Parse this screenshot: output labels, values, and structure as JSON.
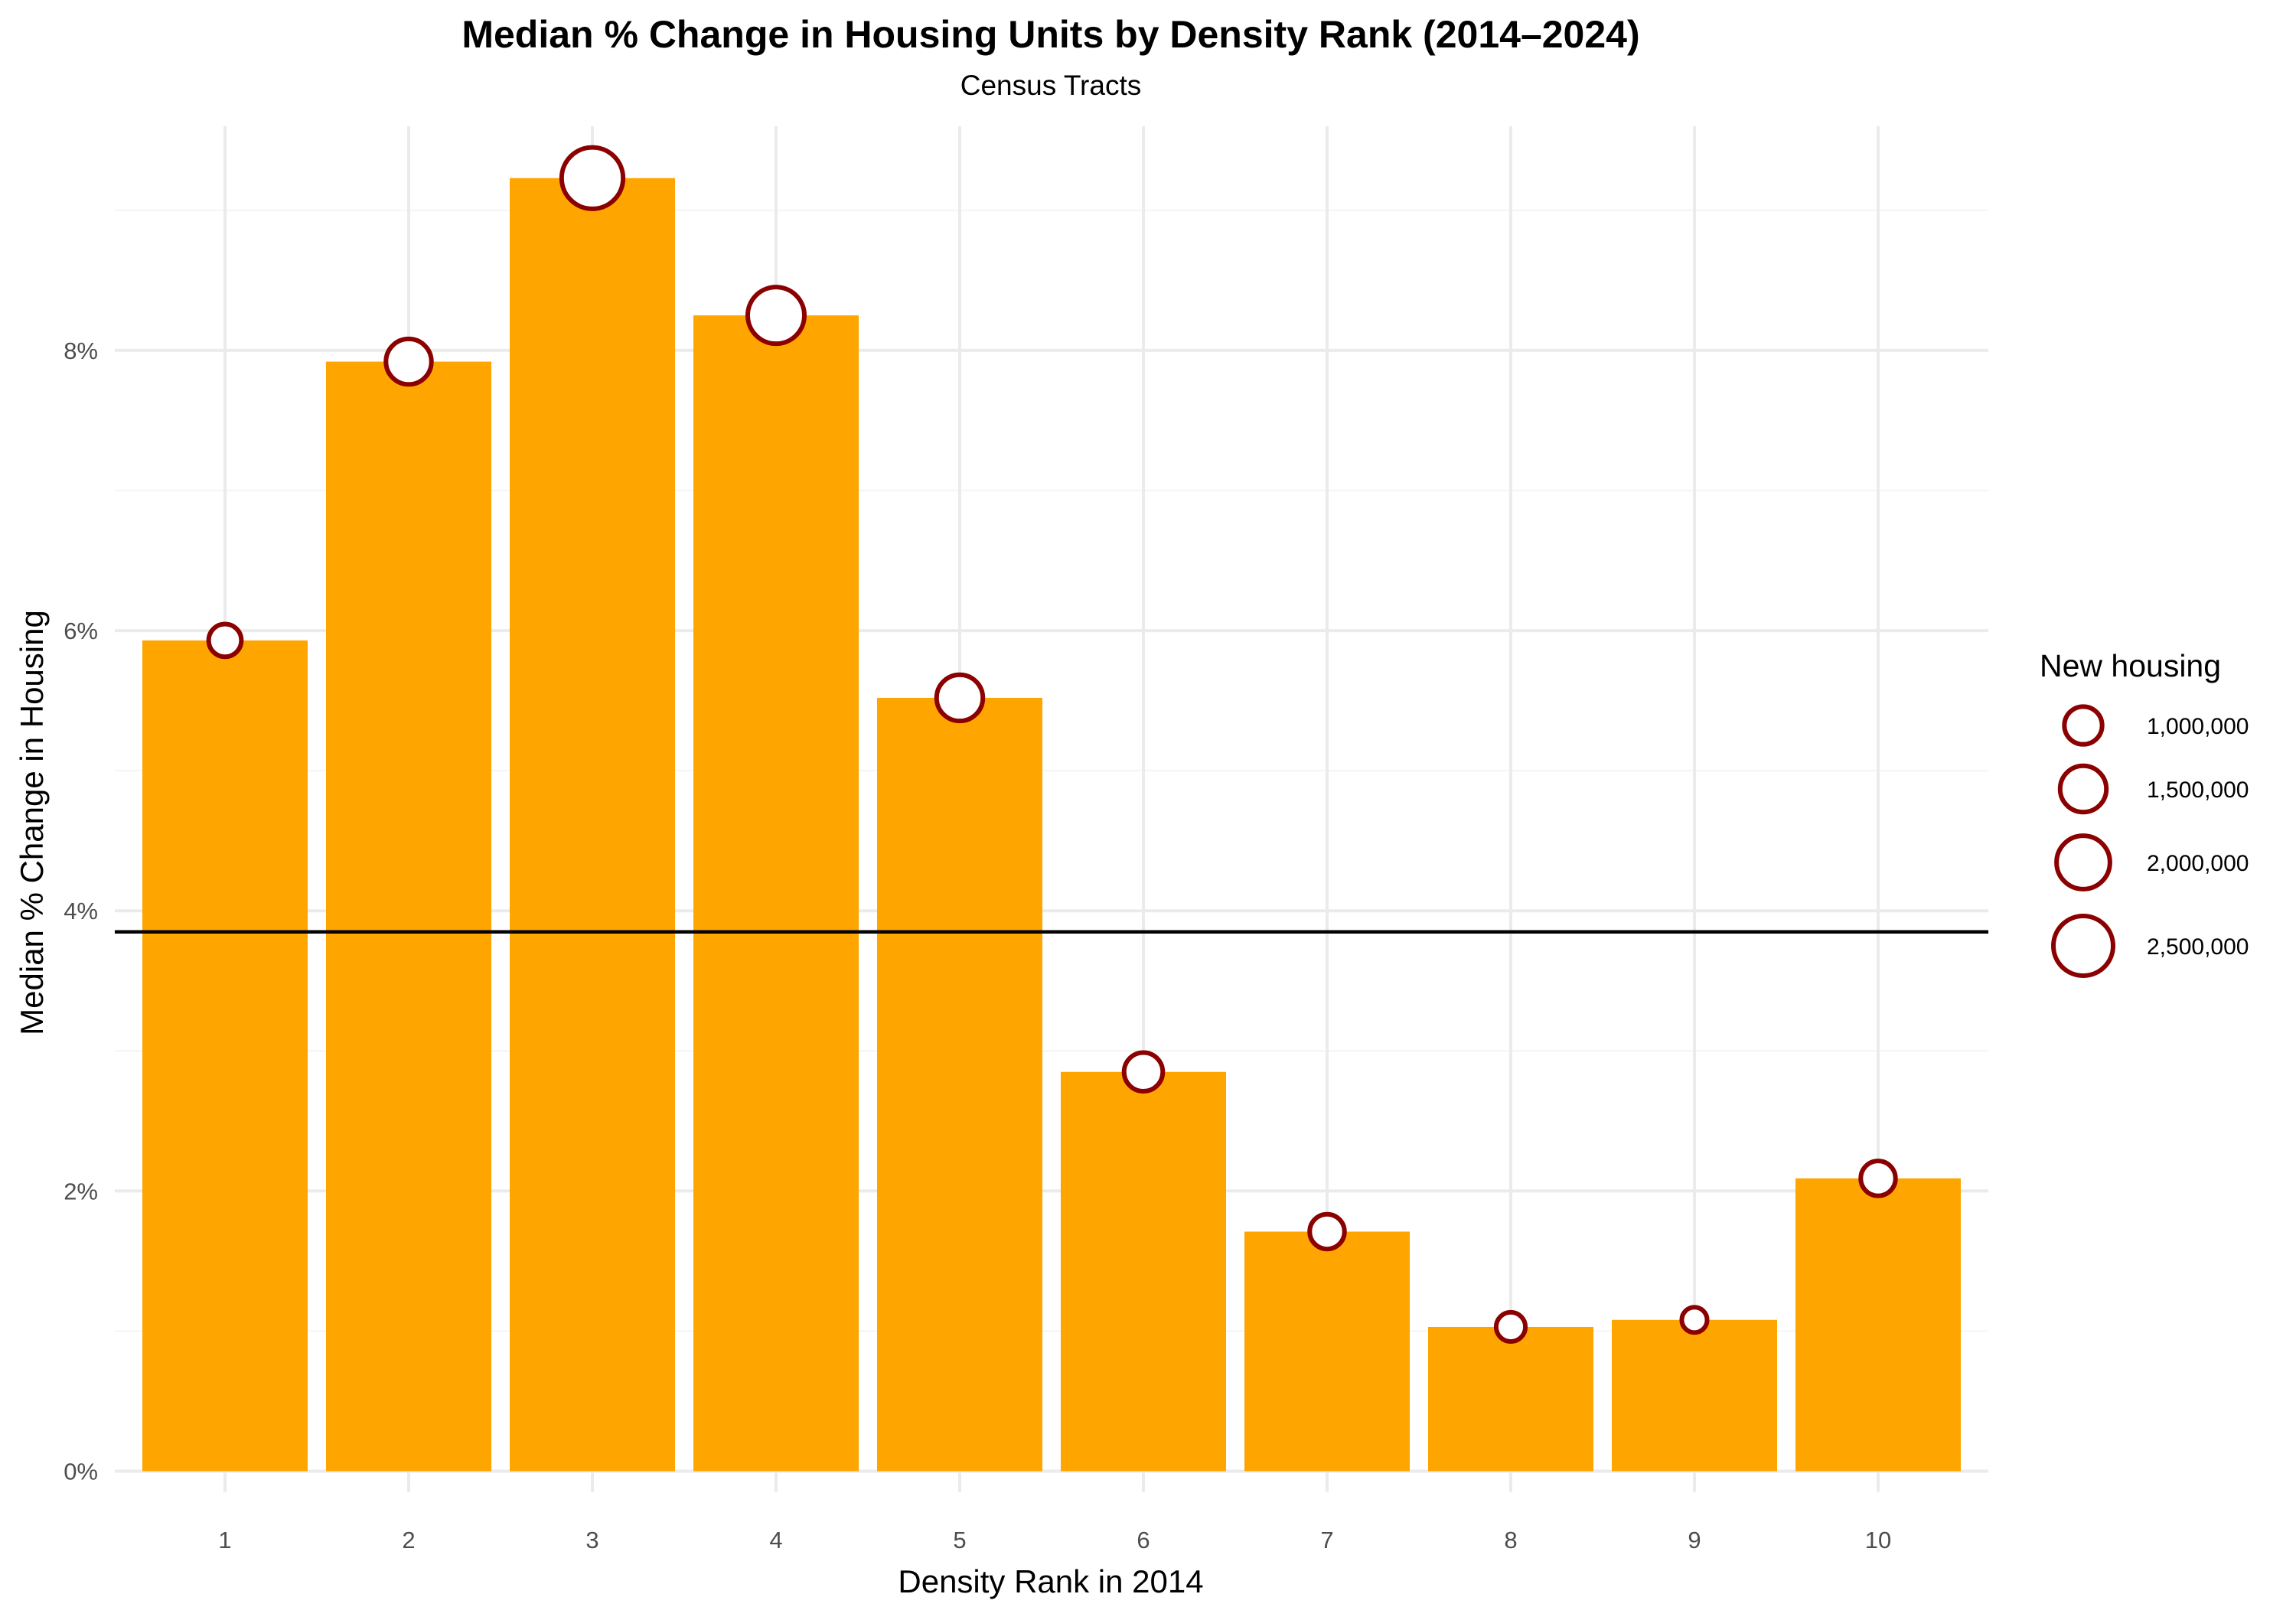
{
  "chart_data": {
    "type": "bar",
    "title": "Median % Change in Housing Units by Density Rank (2014–2024)",
    "subtitle": "Census Tracts",
    "xlabel": "Density Rank in 2014",
    "ylabel": "Median % Change in Housing",
    "categories": [
      "1",
      "2",
      "3",
      "4",
      "5",
      "6",
      "7",
      "8",
      "9",
      "10"
    ],
    "values": [
      5.93,
      7.92,
      9.23,
      8.25,
      5.52,
      2.85,
      1.71,
      1.03,
      1.08,
      2.09
    ],
    "bubble_sizes": [
      750000,
      1450000,
      2650000,
      2250000,
      1500000,
      1050000,
      850000,
      600000,
      450000,
      850000
    ],
    "reference_line": 3.85,
    "ylim": [
      -0.15,
      9.6
    ],
    "yticks": [
      0,
      2,
      4,
      6,
      8
    ],
    "ytick_labels": [
      "0%",
      "2%",
      "4%",
      "6%",
      "8%"
    ],
    "grid": true,
    "legend": {
      "title": "New housing",
      "position": "right",
      "values": [
        1000000,
        1500000,
        2000000,
        2500000
      ],
      "labels": [
        "1,000,000",
        "1,500,000",
        "2,000,000",
        "2,500,000"
      ]
    },
    "colors": {
      "bar": "#FFA500",
      "bubble_stroke": "#8B0000",
      "bubble_fill": "#FFFFFF",
      "reference_line": "#000000",
      "grid_major": "#EBEBEB",
      "grid_minor": "#F4F4F4"
    }
  }
}
